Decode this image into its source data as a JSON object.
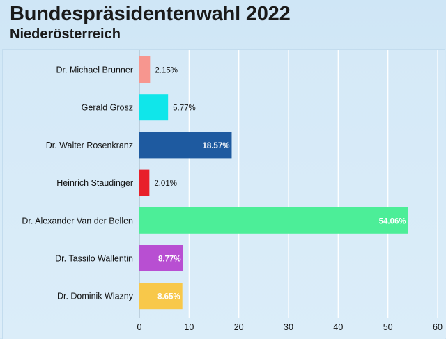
{
  "title": "Bundespräsidentenwahl 2022",
  "subtitle": "Niederösterreich",
  "chart_data": {
    "type": "bar",
    "orientation": "horizontal",
    "title": "Bundespräsidentenwahl 2022",
    "subtitle": "Niederösterreich",
    "categories": [
      "Dr. Michael Brunner",
      "Gerald Grosz",
      "Dr. Walter Rosenkranz",
      "Heinrich Staudinger",
      "Dr. Alexander Van der Bellen",
      "Dr. Tassilo Wallentin",
      "Dr. Dominik Wlazny"
    ],
    "values": [
      2.15,
      5.77,
      18.57,
      2.01,
      54.06,
      8.77,
      8.65
    ],
    "value_labels": [
      "2.15%",
      "5.77%",
      "18.57%",
      "2.01%",
      "54.06%",
      "8.77%",
      "8.65%"
    ],
    "colors": [
      "#f7968f",
      "#10e6ea",
      "#1e5aa0",
      "#e8202a",
      "#4cee98",
      "#b84fd2",
      "#f8c84a"
    ],
    "xlim": [
      0,
      60
    ],
    "xticks": [
      0,
      10,
      20,
      30,
      40,
      50,
      60
    ],
    "xtick_labels": [
      "0",
      "10",
      "20",
      "30",
      "40",
      "50",
      "60"
    ],
    "grid": true,
    "legend": "none"
  }
}
